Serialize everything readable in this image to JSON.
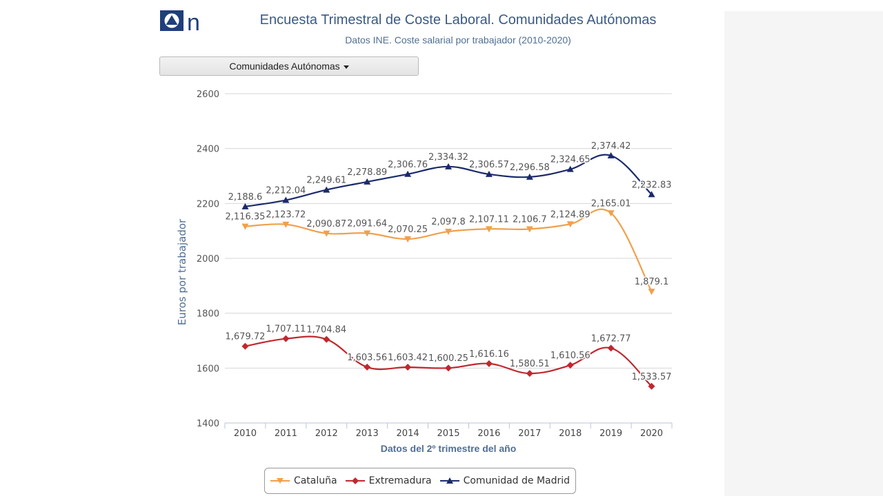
{
  "header": {
    "title": "Encuesta Trimestral de Coste Laboral. Comunidades Autónomas",
    "subtitle": "Datos INE. Coste salarial por trabajador (2010-2020)",
    "logo_letter": "n"
  },
  "dropdown": {
    "label": "Comunidades Autónomas"
  },
  "chart_data": {
    "type": "line",
    "xlabel": "Datos del 2º trimestre del año",
    "ylabel": "Euros por trabajador",
    "ylim": [
      1400,
      2600
    ],
    "yticks": [
      1400,
      1600,
      1800,
      2000,
      2200,
      2400,
      2600
    ],
    "categories": [
      "2010",
      "2011",
      "2012",
      "2013",
      "2014",
      "2015",
      "2016",
      "2017",
      "2018",
      "2019",
      "2020"
    ],
    "grid": true,
    "legend_position": "bottom-center",
    "series": [
      {
        "name": "Cataluña",
        "color": "#f0a04b",
        "marker": "triangle-down",
        "values": [
          2116.35,
          2123.72,
          2090.87,
          2091.64,
          2070.25,
          2097.8,
          2107.11,
          2106.7,
          2124.89,
          2165.01,
          1879.1
        ],
        "labels": [
          "2,116.35",
          "2,123.72",
          "2,090.87",
          "2,091.64",
          "2,070.25",
          "2,097.8",
          "2,107.11",
          "2,106.7",
          "2,124.89",
          "2,165.01",
          "1,879.1"
        ]
      },
      {
        "name": "Extremadura",
        "color": "#c0282e",
        "marker": "diamond",
        "values": [
          1679.72,
          1707.11,
          1704.84,
          1603.56,
          1603.42,
          1600.25,
          1616.16,
          1580.51,
          1610.56,
          1672.77,
          1533.57
        ],
        "labels": [
          "1,679.72",
          "1,707.11",
          "1,704.84",
          "1,603.56",
          "1,603.42",
          "1,600.25",
          "1,616.16",
          "1,580.51",
          "1,610.56",
          "1,672.77",
          "1,533.57"
        ]
      },
      {
        "name": "Comunidad de Madrid",
        "color": "#1b2a6b",
        "marker": "triangle-up",
        "values": [
          2188.6,
          2212.04,
          2249.61,
          2278.89,
          2306.76,
          2334.32,
          2306.57,
          2296.58,
          2324.65,
          2374.42,
          2232.83
        ],
        "labels": [
          "2,188.6",
          "2,212.04",
          "2,249.61",
          "2,278.89",
          "2,306.76",
          "2,334.32",
          "2,306.57",
          "2,296.58",
          "2,324.65",
          "2,374.42",
          "2,232.83"
        ]
      }
    ]
  }
}
